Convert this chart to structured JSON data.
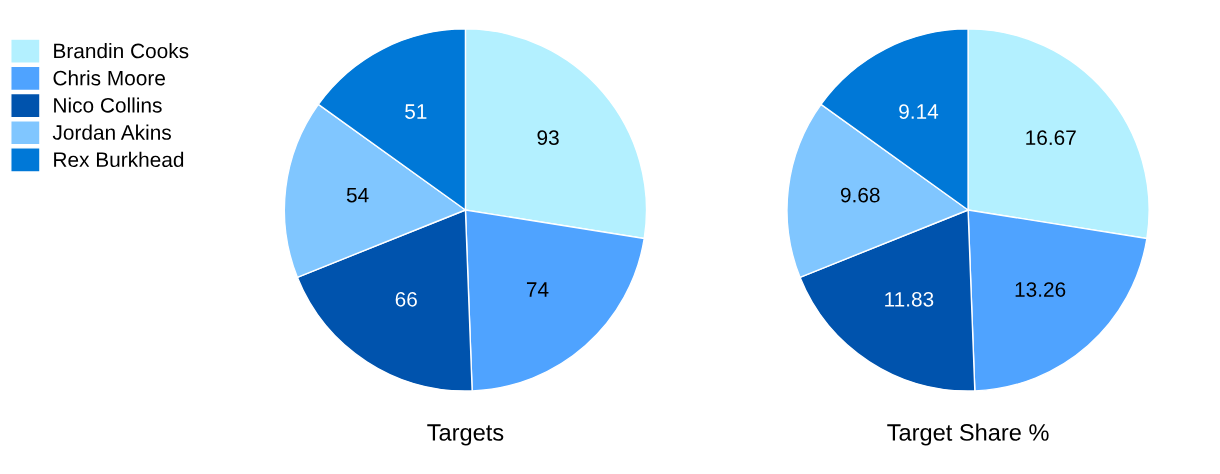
{
  "chart_data": [
    {
      "type": "pie",
      "title": "Targets",
      "categories": [
        "Brandin Cooks",
        "Chris Moore",
        "Nico Collins",
        "Jordan Akins",
        "Rex Burkhead"
      ],
      "values": [
        93,
        74,
        66,
        54,
        51
      ],
      "colors": [
        "#b3f0ff",
        "#4fa3ff",
        "#0053ad",
        "#80c6ff",
        "#0078d7"
      ],
      "data_labels": true,
      "legend": "left"
    },
    {
      "type": "pie",
      "title": "Target Share %",
      "categories": [
        null,
        null,
        null,
        null,
        null
      ],
      "values": [
        16.67,
        13.26,
        11.83,
        9.68,
        9.14
      ],
      "colors": [
        "#b3f0ff",
        "#4fa3ff",
        "#0053ad",
        "#80c6ff",
        "#0078d7"
      ],
      "data_labels": true
    }
  ]
}
